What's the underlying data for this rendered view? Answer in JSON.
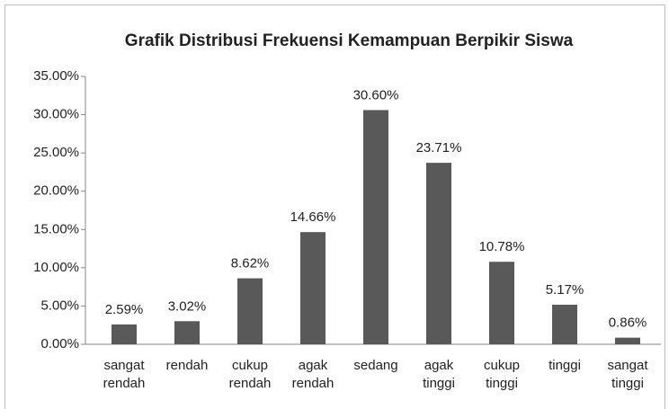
{
  "chart_data": {
    "type": "bar",
    "title": "Grafik Distribusi Frekuensi Kemampuan Berpikir Siswa",
    "categories": [
      "sangat rendah",
      "rendah",
      "cukup rendah",
      "agak rendah",
      "sedang",
      "agak tinggi",
      "cukup tinggi",
      "tinggi",
      "sangat tinggi"
    ],
    "values": [
      2.59,
      3.02,
      8.62,
      14.66,
      30.6,
      23.71,
      10.78,
      5.17,
      0.86
    ],
    "value_labels": [
      "2.59%",
      "3.02%",
      "8.62%",
      "14.66%",
      "30.60%",
      "23.71%",
      "10.78%",
      "5.17%",
      "0.86%"
    ],
    "color": "#595959",
    "ylim": [
      0,
      35
    ],
    "yticks": [
      {
        "value": 0,
        "label": "0.00%"
      },
      {
        "value": 5,
        "label": "5.00%"
      },
      {
        "value": 10,
        "label": "10.00%"
      },
      {
        "value": 15,
        "label": "15.00%"
      },
      {
        "value": 20,
        "label": "20.00%"
      },
      {
        "value": 25,
        "label": "25.00%"
      },
      {
        "value": 30,
        "label": "30.00%"
      },
      {
        "value": 35,
        "label": "35.00%"
      }
    ],
    "grid": false
  }
}
